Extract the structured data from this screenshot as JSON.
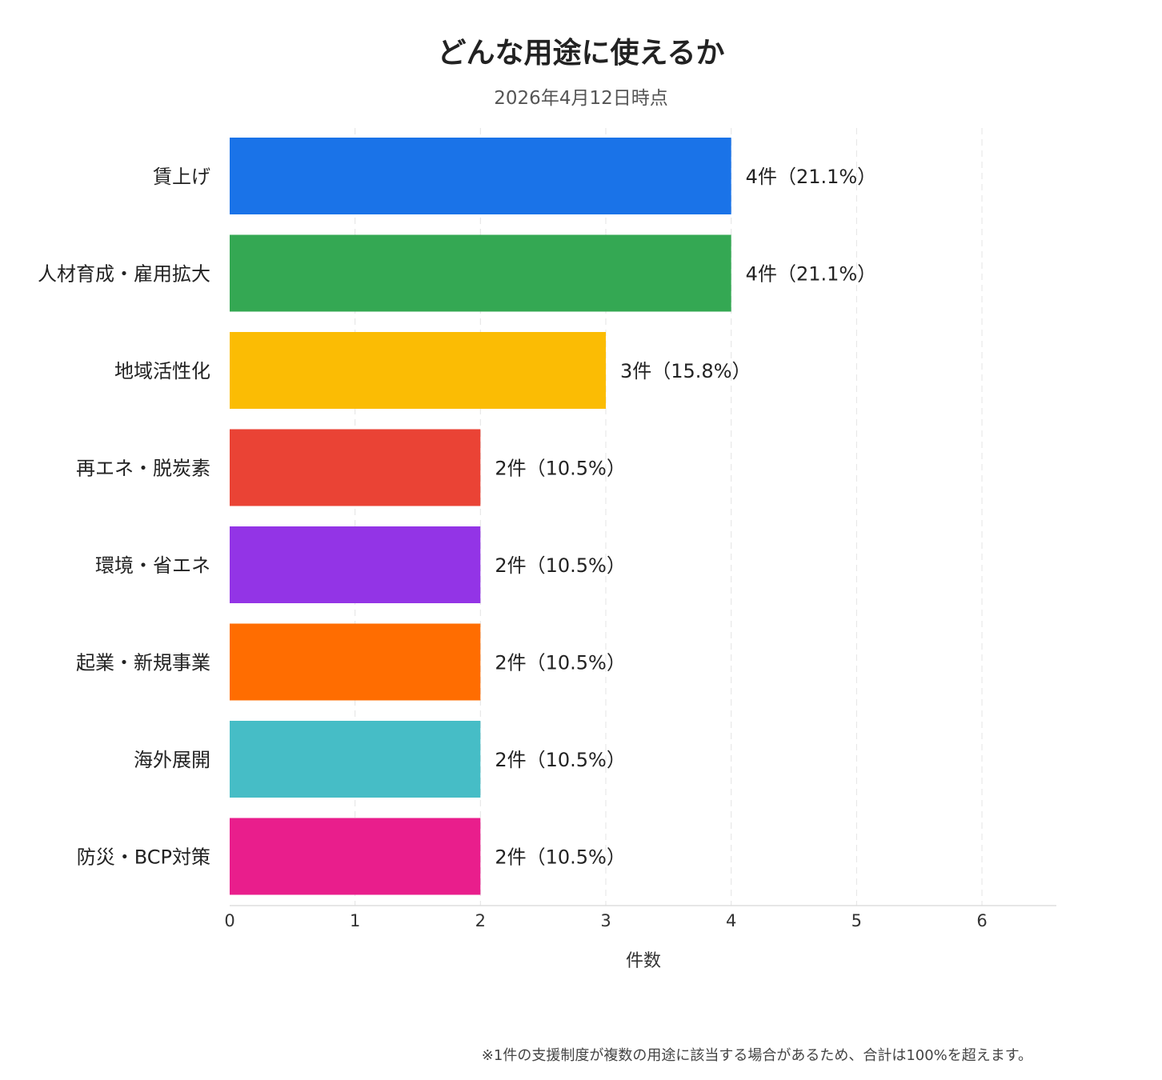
{
  "chart_data": {
    "type": "bar",
    "orientation": "horizontal",
    "title": "どんな用途に使えるか",
    "subtitle": "2026年4月12日時点",
    "xlabel": "件数",
    "ylabel": "",
    "xlim": [
      0,
      6.6
    ],
    "xticks": [
      "0",
      "1",
      "2",
      "3",
      "4",
      "5",
      "6"
    ],
    "grid": true,
    "categories": [
      "賃上げ",
      "人材育成・雇用拡大",
      "地域活性化",
      "再エネ・脱炭素",
      "環境・省エネ",
      "起業・新規事業",
      "海外展開",
      "防災・BCP対策"
    ],
    "values": [
      4,
      4,
      3,
      2,
      2,
      2,
      2,
      2
    ],
    "labels": [
      "4件（21.1%）",
      "4件（21.1%）",
      "3件（15.8%）",
      "2件（10.5%）",
      "2件（10.5%）",
      "2件（10.5%）",
      "2件（10.5%）",
      "2件（10.5%）"
    ],
    "colors": [
      "#1a73e8",
      "#34a853",
      "#fbbc04",
      "#ea4335",
      "#9334e6",
      "#ff6d01",
      "#46bdc6",
      "#e91e8c"
    ],
    "footnote": "※1件の支援制度が複数の用途に該当する場合があるため、合計は100%を超えます。"
  }
}
